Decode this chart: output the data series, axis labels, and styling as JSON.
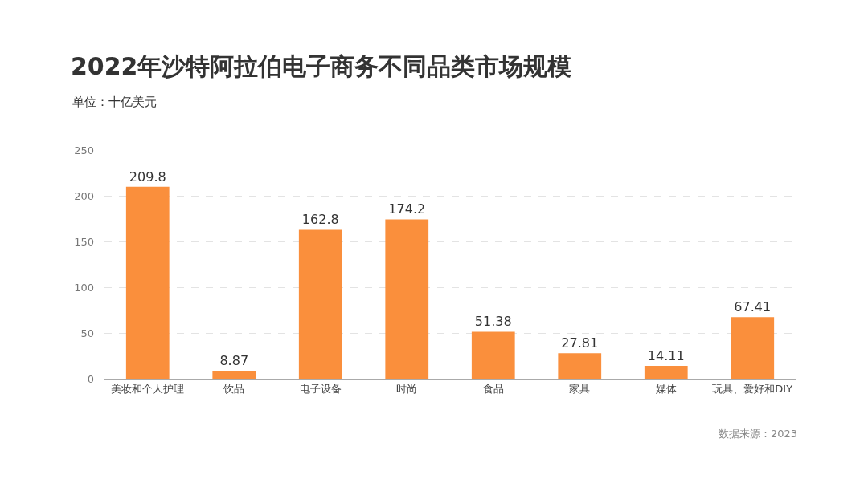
{
  "chart_data": {
    "type": "bar",
    "title": "2022年沙特阿拉伯电子商务不同品类市场规模",
    "subtitle": "单位：十亿美元",
    "categories": [
      "美妆和个人护理",
      "饮品",
      "电子设备",
      "时尚",
      "食品",
      "家具",
      "媒体",
      "玩具、爱好和DIY"
    ],
    "values": [
      209.8,
      8.87,
      162.8,
      174.2,
      51.38,
      27.81,
      14.11,
      67.41
    ],
    "color": "#fa8f3c",
    "ylim": [
      0,
      250
    ],
    "yticks": [
      0,
      50,
      100,
      150,
      200,
      250
    ],
    "grid": "y",
    "legend": false,
    "data_labels": true,
    "annotations": [
      "数据来源：2023"
    ]
  }
}
